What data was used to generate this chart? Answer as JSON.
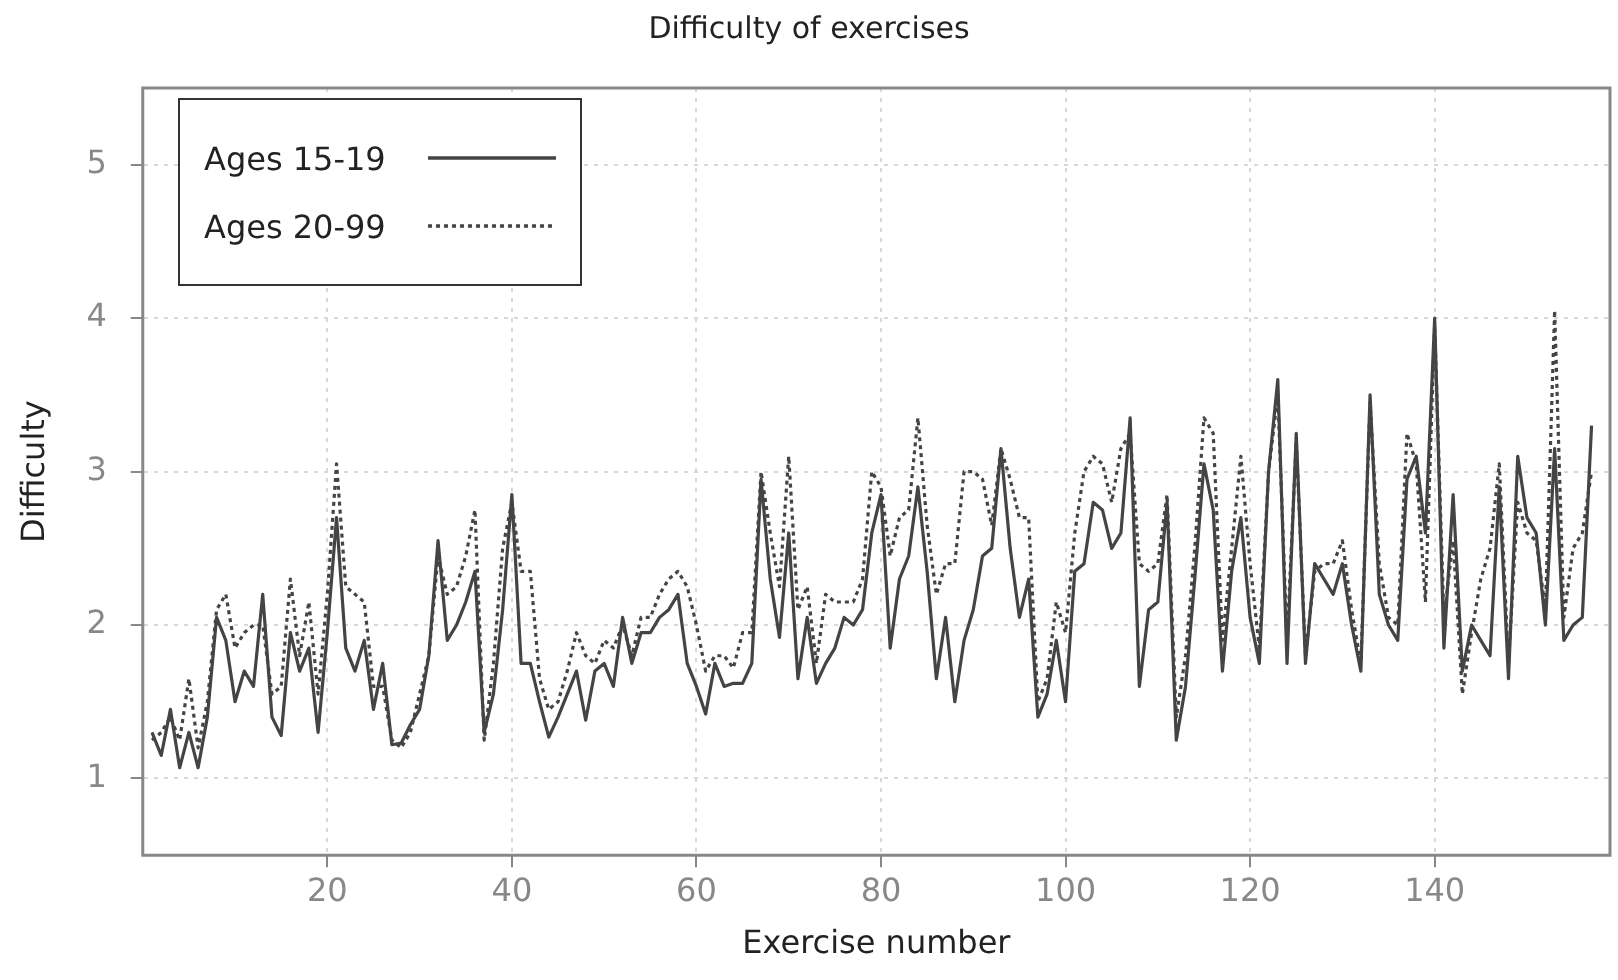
{
  "chart_data": {
    "type": "line",
    "title": "Difficulty of exercises",
    "xlabel": "Exercise number",
    "ylabel": "Difficulty",
    "x": [
      1,
      2,
      3,
      4,
      5,
      6,
      7,
      8,
      9,
      10,
      11,
      12,
      13,
      14,
      15,
      16,
      17,
      18,
      19,
      20,
      21,
      22,
      23,
      24,
      25,
      26,
      27,
      28,
      29,
      30,
      31,
      32,
      33,
      34,
      35,
      36,
      37,
      38,
      39,
      40,
      41,
      42,
      43,
      44,
      45,
      46,
      47,
      48,
      49,
      50,
      51,
      52,
      53,
      54,
      55,
      56,
      57,
      58,
      59,
      60,
      61,
      62,
      63,
      64,
      65,
      66,
      67,
      68,
      69,
      70,
      71,
      72,
      73,
      74,
      75,
      76,
      77,
      78,
      79,
      80,
      81,
      82,
      83,
      84,
      85,
      86,
      87,
      88,
      89,
      90,
      91,
      92,
      93,
      94,
      95,
      96,
      97,
      98,
      99,
      100,
      101,
      102,
      103,
      104,
      105,
      106,
      107,
      108,
      109,
      110,
      111,
      112,
      113,
      114,
      115,
      116,
      117,
      118,
      119,
      120,
      121,
      122,
      123,
      124,
      125,
      126,
      127,
      128,
      129,
      130,
      131,
      132,
      133,
      134,
      135,
      136,
      137,
      138,
      139,
      140,
      141,
      142,
      143,
      144,
      145,
      146,
      147,
      148,
      149,
      150,
      151,
      152,
      153,
      154,
      155,
      156,
      157
    ],
    "series": [
      {
        "name": "Ages 15-19",
        "color": "#444444",
        "line_style": "solid",
        "values": [
          1.3,
          1.15,
          1.45,
          1.07,
          1.3,
          1.07,
          1.4,
          2.05,
          1.9,
          1.5,
          1.7,
          1.6,
          2.2,
          1.4,
          1.28,
          1.95,
          1.7,
          1.85,
          1.3,
          1.95,
          2.7,
          1.85,
          1.7,
          1.9,
          1.45,
          1.75,
          1.22,
          1.23,
          1.35,
          1.45,
          1.8,
          2.55,
          1.9,
          2.0,
          2.15,
          2.35,
          1.3,
          1.55,
          2.1,
          2.85,
          1.75,
          1.75,
          1.5,
          1.27,
          1.4,
          1.55,
          1.7,
          1.38,
          1.7,
          1.75,
          1.6,
          2.05,
          1.75,
          1.95,
          1.95,
          2.05,
          2.1,
          2.2,
          1.75,
          1.6,
          1.42,
          1.75,
          1.6,
          1.62,
          1.62,
          1.75,
          2.95,
          2.3,
          1.92,
          2.6,
          1.65,
          2.05,
          1.62,
          1.75,
          1.85,
          2.05,
          2.0,
          2.1,
          2.6,
          2.85,
          1.85,
          2.3,
          2.45,
          2.9,
          2.35,
          1.65,
          2.05,
          1.5,
          1.9,
          2.1,
          2.45,
          2.5,
          3.15,
          2.5,
          2.05,
          2.3,
          1.4,
          1.55,
          1.9,
          1.5,
          2.35,
          2.4,
          2.8,
          2.75,
          2.5,
          2.6,
          3.35,
          1.6,
          2.1,
          2.15,
          2.8,
          1.25,
          1.6,
          2.3,
          3.05,
          2.75,
          1.7,
          2.35,
          2.7,
          2.05,
          1.75,
          3.0,
          3.6,
          1.75,
          3.25,
          1.75,
          2.4,
          2.3,
          2.2,
          2.4,
          2.0,
          1.7,
          3.5,
          2.2,
          2.0,
          1.9,
          2.95,
          3.1,
          2.6,
          4.0,
          1.85,
          2.85,
          1.7,
          2.0,
          1.9,
          1.8,
          2.9,
          1.65,
          3.1,
          2.7,
          2.6,
          2.0,
          3.15,
          1.9,
          2.0,
          2.05,
          3.3
        ]
      },
      {
        "name": "Ages 20-99",
        "color": "#444444",
        "line_style": "dotted",
        "values": [
          1.25,
          1.3,
          1.4,
          1.25,
          1.65,
          1.2,
          1.5,
          2.1,
          2.2,
          1.85,
          1.95,
          2.0,
          2.0,
          1.55,
          1.6,
          2.3,
          1.8,
          2.15,
          1.55,
          2.2,
          3.05,
          2.25,
          2.2,
          2.15,
          1.6,
          1.6,
          1.25,
          1.2,
          1.3,
          1.55,
          1.8,
          2.45,
          2.2,
          2.25,
          2.45,
          2.75,
          1.25,
          1.75,
          2.5,
          2.8,
          2.35,
          2.35,
          1.65,
          1.45,
          1.5,
          1.7,
          1.95,
          1.8,
          1.75,
          1.9,
          1.85,
          2.0,
          1.8,
          2.05,
          2.05,
          2.2,
          2.3,
          2.35,
          2.25,
          2.0,
          1.7,
          1.8,
          1.8,
          1.72,
          1.95,
          1.95,
          3.0,
          2.6,
          2.25,
          3.1,
          2.1,
          2.25,
          1.75,
          2.2,
          2.15,
          2.15,
          2.15,
          2.3,
          3.0,
          2.9,
          2.45,
          2.7,
          2.75,
          3.35,
          2.65,
          2.2,
          2.4,
          2.4,
          3.0,
          3.0,
          2.95,
          2.65,
          3.15,
          2.95,
          2.7,
          2.7,
          1.5,
          1.65,
          2.15,
          1.95,
          2.6,
          3.0,
          3.1,
          3.05,
          2.8,
          3.15,
          3.25,
          2.4,
          2.35,
          2.4,
          2.85,
          1.4,
          1.8,
          2.5,
          3.35,
          3.25,
          1.9,
          2.5,
          3.1,
          2.4,
          1.85,
          3.0,
          3.5,
          1.9,
          3.2,
          1.8,
          2.35,
          2.4,
          2.4,
          2.55,
          2.1,
          1.75,
          3.45,
          2.4,
          2.05,
          2.0,
          3.25,
          3.05,
          2.15,
          3.95,
          2.05,
          2.55,
          1.55,
          1.95,
          2.3,
          2.5,
          3.05,
          1.75,
          2.8,
          2.6,
          2.55,
          2.1,
          4.05,
          2.05,
          2.5,
          2.6,
          3.0
        ]
      }
    ],
    "xlim": [
      0,
      159
    ],
    "xticks": [
      20,
      40,
      60,
      80,
      100,
      120,
      140
    ],
    "ylim": [
      0.5,
      5.5
    ],
    "yticks": [
      1,
      2,
      3,
      4,
      5
    ],
    "grid": true,
    "legend": "top left"
  }
}
